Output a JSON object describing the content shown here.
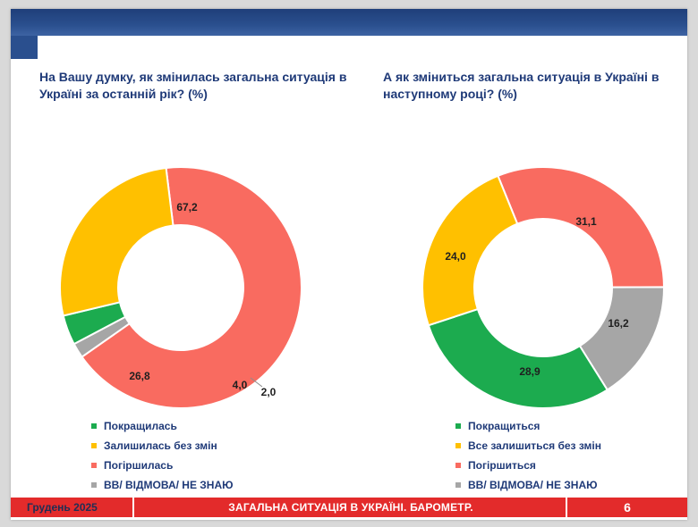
{
  "footer": {
    "date": "Грудень 2025",
    "title": "ЗАГАЛЬНА СИТУАЦІЯ В УКРАЇНІ. БАРОМЕТР.",
    "page_number": "6"
  },
  "chart_data": [
    {
      "type": "pie",
      "donut": true,
      "title": "На Вашу думку, як змінилась загальна ситуація в Україні за останній рік? (%)",
      "categories": [
        "Покращилась",
        "Залишилась без змін",
        "Погіршилась",
        "ВВ/ ВІДМОВА/ НЕ ЗНАЮ"
      ],
      "values": [
        4.0,
        26.8,
        67.2,
        2.0
      ],
      "value_labels": [
        "4,0",
        "26,8",
        "67,2",
        "2,0"
      ],
      "colors": [
        "#1cab4f",
        "#ffc000",
        "#f96b60",
        "#a6a6a6"
      ],
      "legend_position": "bottom-left"
    },
    {
      "type": "pie",
      "donut": true,
      "title": "А як зміниться загальна ситуація в Україні в наступному році? (%)",
      "categories": [
        "Покращиться",
        "Все залишиться без змін",
        "Погіршиться",
        "ВВ/ ВІДМОВА/ НЕ ЗНАЮ"
      ],
      "values": [
        28.9,
        24.0,
        31.1,
        16.2
      ],
      "value_labels": [
        "28,9",
        "24,0",
        "31,1",
        "16,2"
      ],
      "colors": [
        "#1cab4f",
        "#ffc000",
        "#f96b60",
        "#a6a6a6"
      ],
      "legend_position": "bottom-left"
    }
  ]
}
